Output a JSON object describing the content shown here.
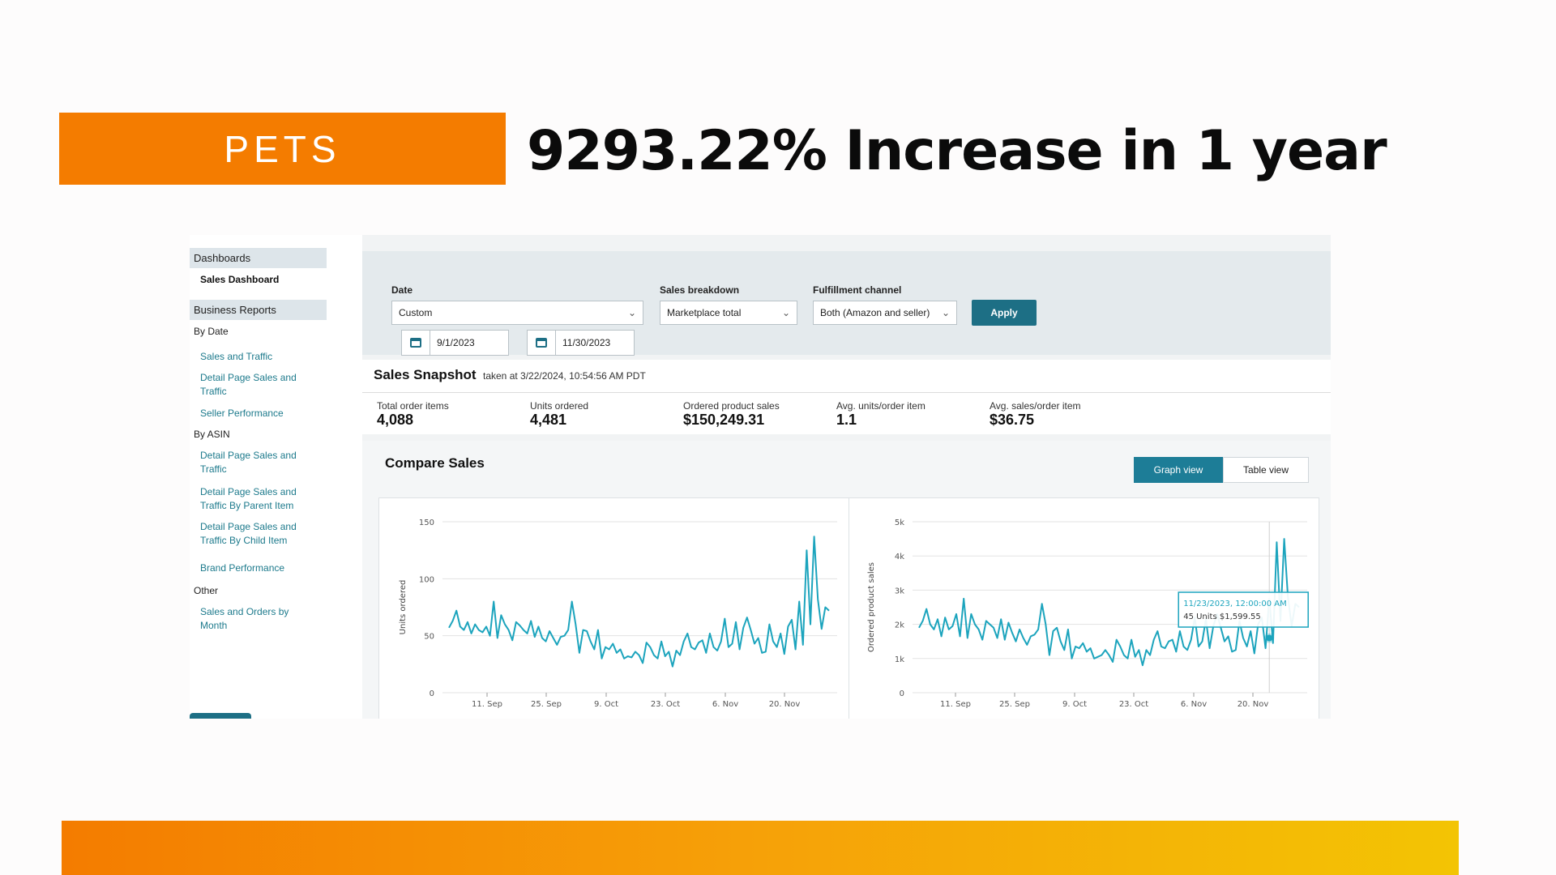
{
  "banner": {
    "label": "PETS",
    "headline": "9293.22% Increase in 1 year"
  },
  "sidebar": {
    "sections": [
      {
        "kind": "head",
        "label": "Dashboards"
      },
      {
        "kind": "bold",
        "label": "Sales Dashboard"
      },
      {
        "kind": "head",
        "label": "Business Reports"
      },
      {
        "kind": "cat",
        "label": "By Date"
      },
      {
        "kind": "link",
        "label": "Sales and Traffic"
      },
      {
        "kind": "link",
        "label": "Detail Page Sales and Traffic"
      },
      {
        "kind": "link",
        "label": "Seller Performance"
      },
      {
        "kind": "cat",
        "label": "By ASIN"
      },
      {
        "kind": "link",
        "label": "Detail Page Sales and Traffic"
      },
      {
        "kind": "link",
        "label": "Detail Page Sales and Traffic By Parent Item"
      },
      {
        "kind": "link",
        "label": "Detail Page Sales and Traffic By Child Item"
      },
      {
        "kind": "link",
        "label": "Brand Performance"
      },
      {
        "kind": "cat",
        "label": "Other"
      },
      {
        "kind": "link",
        "label": "Sales and Orders by Month"
      }
    ]
  },
  "filters": {
    "date_label": "Date",
    "date_value": "Custom",
    "start_date": "9/1/2023",
    "end_date": "11/30/2023",
    "breakdown_label": "Sales breakdown",
    "breakdown_value": "Marketplace total",
    "channel_label": "Fulfillment channel",
    "channel_value": "Both (Amazon and seller)",
    "apply_label": "Apply"
  },
  "snapshot": {
    "title": "Sales Snapshot",
    "taken_at": "taken at 3/22/2024, 10:54:56 AM PDT",
    "metrics": [
      {
        "label": "Total order items",
        "value": "4,088"
      },
      {
        "label": "Units ordered",
        "value": "4,481"
      },
      {
        "label": "Ordered product sales",
        "value": "$150,249.31"
      },
      {
        "label": "Avg. units/order item",
        "value": "1.1"
      },
      {
        "label": "Avg. sales/order item",
        "value": "$36.75"
      }
    ]
  },
  "compare": {
    "title": "Compare Sales",
    "graph_view": "Graph view",
    "table_view": "Table view"
  },
  "colors": {
    "accent": "#1d6f85",
    "line": "#1ca4bd",
    "banner": "#f47c00"
  },
  "chart_data": [
    {
      "type": "line",
      "ylabel": "Units ordered",
      "ylim": [
        0,
        150
      ],
      "yticks": [
        "0",
        "50",
        "100",
        "150"
      ],
      "xticks": [
        "11. Sep",
        "25. Sep",
        "9. Oct",
        "23. Oct",
        "6. Nov",
        "20. Nov"
      ],
      "x_start": "2023-09-01",
      "series": [
        {
          "values": [
            57,
            63,
            72,
            58,
            55,
            62,
            52,
            60,
            55,
            53,
            58,
            50,
            80,
            48,
            68,
            60,
            55,
            46,
            62,
            59,
            55,
            52,
            63,
            49,
            58,
            48,
            45,
            54,
            48,
            42,
            49,
            50,
            55,
            80,
            60,
            35,
            55,
            54,
            45,
            38,
            55,
            30,
            40,
            38,
            43,
            35,
            38,
            30,
            32,
            31,
            36,
            33,
            26,
            44,
            40,
            33,
            30,
            45,
            32,
            36,
            23,
            37,
            33,
            45,
            52,
            40,
            38,
            44,
            46,
            35,
            52,
            40,
            37,
            45,
            65,
            40,
            43,
            62,
            38,
            57,
            66,
            55,
            43,
            48,
            35,
            36,
            60,
            45,
            40,
            52,
            34,
            58,
            64,
            38,
            80,
            42,
            125,
            60,
            137,
            82,
            56,
            75,
            72
          ]
        }
      ]
    },
    {
      "type": "line",
      "ylabel": "Ordered product sales",
      "ylim": [
        0,
        5000
      ],
      "yticks": [
        "0",
        "1k",
        "2k",
        "3k",
        "4k",
        "5k"
      ],
      "xticks": [
        "11. Sep",
        "25. Sep",
        "9. Oct",
        "23. Oct",
        "6. Nov",
        "20. Nov"
      ],
      "tooltip": {
        "date": "11/23/2023, 12:00:00 AM",
        "text": "45 Units $1,599.55"
      },
      "series": [
        {
          "values": [
            1900,
            2100,
            2450,
            2000,
            1850,
            2150,
            1650,
            2200,
            1850,
            1950,
            2300,
            1650,
            2750,
            1600,
            2300,
            2000,
            1850,
            1550,
            2100,
            2000,
            1900,
            1600,
            2150,
            1550,
            2050,
            1750,
            1500,
            1850,
            1600,
            1400,
            1650,
            1700,
            1850,
            2600,
            2000,
            1100,
            1800,
            1900,
            1500,
            1250,
            1850,
            1000,
            1350,
            1300,
            1450,
            1200,
            1300,
            1000,
            1050,
            1100,
            1250,
            1100,
            900,
            1550,
            1350,
            1100,
            1000,
            1550,
            1050,
            1250,
            800,
            1250,
            1100,
            1550,
            1800,
            1350,
            1300,
            1500,
            1550,
            1200,
            1800,
            1350,
            1250,
            1550,
            2200,
            1350,
            1500,
            2150,
            1300,
            1950,
            2300,
            1900,
            1500,
            1650,
            1200,
            1250,
            2100,
            1600,
            1350,
            1800,
            1150,
            2000,
            2200,
            1300,
            2750,
            1450,
            4400,
            2100,
            4500,
            2800,
            1950,
            2600,
            2500
          ]
        }
      ]
    }
  ]
}
